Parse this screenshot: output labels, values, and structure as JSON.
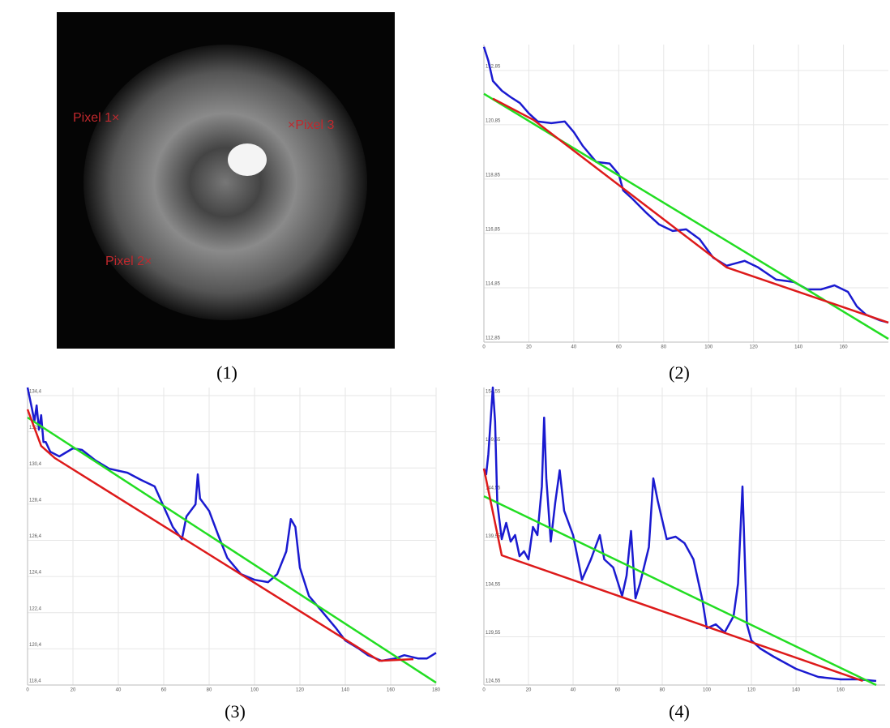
{
  "image": {
    "caption": "(1)",
    "labels": [
      "Pixel 1×",
      "Pixel 2×",
      "×Pixel 3"
    ]
  },
  "chart_data": [
    {
      "type": "line",
      "caption": "(2)",
      "xlim": [
        0,
        180
      ],
      "xticks": [
        0,
        20,
        40,
        60,
        80,
        100,
        120,
        140,
        160
      ],
      "ylim": [
        112.85,
        123.8
      ],
      "yticks": [
        {
          "value": 112.85,
          "label": "112,85"
        },
        {
          "value": 114.85,
          "label": "114,85"
        },
        {
          "value": 116.85,
          "label": "116,85"
        },
        {
          "value": 118.85,
          "label": "118,85"
        },
        {
          "value": 120.85,
          "label": "120,85"
        },
        {
          "value": 122.85,
          "label": "122,85"
        }
      ],
      "grid": true,
      "series": [
        {
          "color": "#1a1ad0",
          "x": [
            0,
            2,
            4,
            8,
            12,
            16,
            20,
            24,
            30,
            36,
            40,
            44,
            50,
            56,
            60,
            62,
            66,
            72,
            78,
            84,
            90,
            96,
            102,
            108,
            116,
            122,
            130,
            138,
            144,
            150,
            156,
            162,
            166,
            170,
            176,
            180
          ],
          "values": [
            123.72,
            123.2,
            122.46,
            122.1,
            121.86,
            121.65,
            121.27,
            120.97,
            120.91,
            120.97,
            120.58,
            120.07,
            119.48,
            119.42,
            119.03,
            118.43,
            118.13,
            117.63,
            117.18,
            116.94,
            117.0,
            116.64,
            115.96,
            115.66,
            115.84,
            115.6,
            115.15,
            115.06,
            114.79,
            114.79,
            114.94,
            114.7,
            114.16,
            113.86,
            113.66,
            113.57
          ]
        },
        {
          "color": "#22dd22",
          "x": [
            0,
            180
          ],
          "values": [
            121.99,
            112.97
          ]
        },
        {
          "color": "#dd1a1a",
          "x": [
            4,
            22,
            108,
            180
          ],
          "values": [
            121.81,
            121.03,
            115.6,
            113.57
          ]
        }
      ]
    },
    {
      "type": "line",
      "caption": "(3)",
      "xlim": [
        0,
        180
      ],
      "xticks": [
        0,
        20,
        40,
        60,
        80,
        100,
        120,
        140,
        160,
        180
      ],
      "ylim": [
        118.4,
        134.85
      ],
      "yticks": [
        {
          "value": 118.4,
          "label": "118,4"
        },
        {
          "value": 120.4,
          "label": "120,4"
        },
        {
          "value": 122.4,
          "label": "122,4"
        },
        {
          "value": 124.4,
          "label": "124,4"
        },
        {
          "value": 126.4,
          "label": "126,4"
        },
        {
          "value": 128.4,
          "label": "128,4"
        },
        {
          "value": 130.4,
          "label": "130,4"
        },
        {
          "value": 132.4,
          "label": "132,4"
        },
        {
          "value": 134.4,
          "label": "134,4"
        }
      ],
      "grid": true,
      "series": [
        {
          "color": "#1a1ad0",
          "x": [
            0,
            2,
            3,
            4,
            5,
            6,
            7,
            8,
            10,
            14,
            20,
            24,
            30,
            36,
            44,
            50,
            56,
            60,
            64,
            68,
            70,
            74,
            75,
            76,
            80,
            84,
            88,
            94,
            100,
            106,
            110,
            114,
            116,
            118,
            120,
            124,
            130,
            136,
            140,
            146,
            150,
            156,
            162,
            166,
            172,
            176,
            180
          ],
          "values": [
            134.85,
            133.64,
            132.97,
            133.86,
            132.52,
            133.32,
            131.84,
            131.84,
            131.3,
            131.04,
            131.49,
            131.4,
            130.81,
            130.36,
            130.14,
            129.74,
            129.38,
            128.26,
            127.14,
            126.46,
            127.72,
            128.39,
            130.05,
            128.71,
            128.03,
            126.69,
            125.43,
            124.53,
            124.22,
            124.09,
            124.53,
            125.79,
            127.58,
            127.14,
            124.89,
            123.32,
            122.43,
            121.53,
            120.86,
            120.41,
            120.05,
            119.74,
            119.87,
            120.05,
            119.87,
            119.87,
            120.18
          ]
        },
        {
          "color": "#22dd22",
          "x": [
            0,
            180
          ],
          "values": [
            133.19,
            118.53
          ]
        },
        {
          "color": "#dd1a1a",
          "x": [
            0,
            6,
            12,
            155,
            170
          ],
          "values": [
            133.64,
            131.62,
            130.95,
            119.74,
            119.83
          ]
        }
      ]
    },
    {
      "type": "line",
      "caption": "(4)",
      "xlim": [
        0,
        180
      ],
      "xticks": [
        0,
        20,
        40,
        60,
        80,
        100,
        120,
        140,
        160
      ],
      "ylim": [
        124.55,
        155.4
      ],
      "yticks": [
        {
          "value": 124.55,
          "label": "124,55"
        },
        {
          "value": 129.55,
          "label": "129,55"
        },
        {
          "value": 134.55,
          "label": "134,55"
        },
        {
          "value": 139.55,
          "label": "139,55"
        },
        {
          "value": 144.55,
          "label": "144,55"
        },
        {
          "value": 149.55,
          "label": "149,55"
        },
        {
          "value": 154.55,
          "label": "154,55"
        }
      ],
      "grid": true,
      "series": [
        {
          "color": "#1a1ad0",
          "x": [
            0,
            1,
            2,
            4,
            5,
            6,
            8,
            10,
            12,
            14,
            16,
            18,
            20,
            22,
            24,
            26,
            27,
            28,
            30,
            32,
            34,
            36,
            40,
            44,
            48,
            52,
            54,
            58,
            62,
            64,
            66,
            68,
            70,
            74,
            76,
            78,
            82,
            86,
            90,
            94,
            98,
            100,
            104,
            108,
            112,
            114,
            116,
            118,
            120,
            124,
            130,
            140,
            150,
            160,
            168,
            176
          ],
          "values": [
            146.99,
            146.4,
            148.5,
            155.4,
            151.86,
            143.46,
            139.68,
            141.36,
            139.42,
            140.1,
            137.91,
            138.42,
            137.58,
            140.94,
            140.1,
            145.14,
            152.28,
            145.98,
            139.42,
            143.46,
            146.82,
            142.62,
            140.1,
            135.47,
            137.58,
            140.1,
            137.58,
            136.74,
            133.79,
            135.89,
            140.52,
            133.54,
            135.05,
            138.84,
            145.98,
            143.63,
            139.68,
            139.93,
            139.26,
            137.58,
            133.37,
            130.43,
            130.85,
            130.01,
            131.69,
            135.05,
            145.14,
            130.85,
            129.17,
            128.33,
            127.49,
            126.23,
            125.39,
            125.14,
            125.14,
            124.97
          ]
        },
        {
          "color": "#22dd22",
          "x": [
            0,
            176
          ],
          "values": [
            144.13,
            124.55
          ]
        },
        {
          "color": "#dd1a1a",
          "x": [
            0,
            8,
            170
          ],
          "values": [
            146.99,
            138.0,
            124.97
          ]
        }
      ]
    }
  ]
}
